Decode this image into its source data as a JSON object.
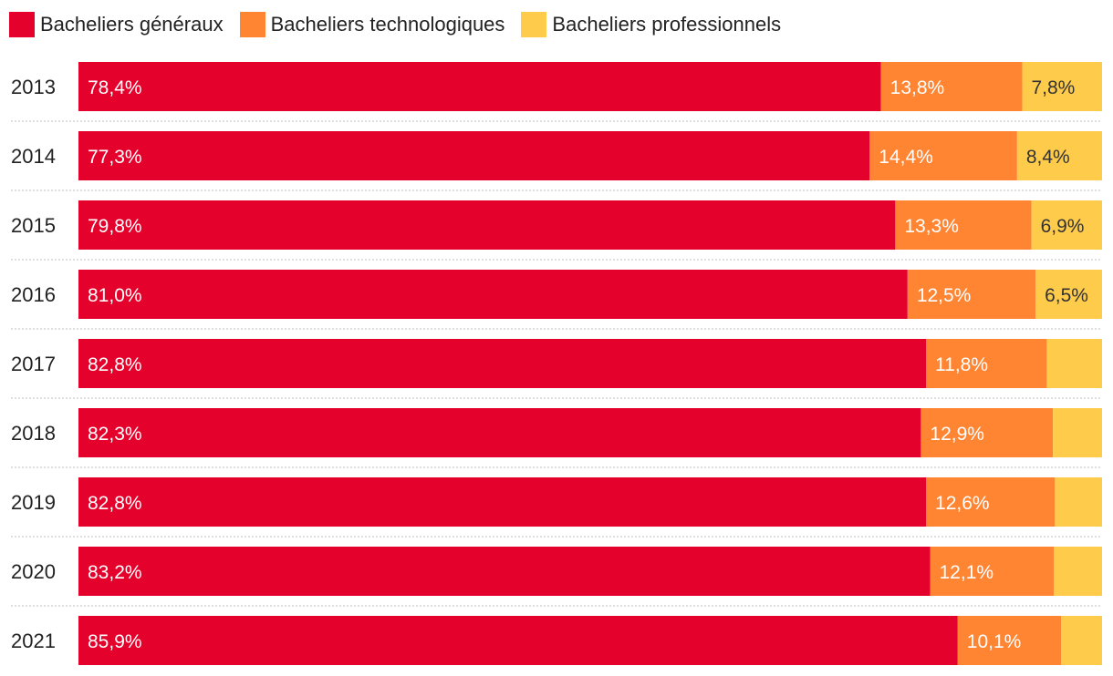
{
  "chart_data": {
    "type": "bar",
    "orientation": "horizontal",
    "stacked": true,
    "categories": [
      "2013",
      "2014",
      "2015",
      "2016",
      "2017",
      "2018",
      "2019",
      "2020",
      "2021"
    ],
    "series": [
      {
        "name": "Bacheliers généraux",
        "color": "#e4022c",
        "values": [
          78.4,
          77.3,
          79.8,
          81.0,
          82.8,
          82.3,
          82.8,
          83.2,
          85.9
        ],
        "labels": [
          "78,4%",
          "77,3%",
          "79,8%",
          "81,0%",
          "82,8%",
          "82,3%",
          "82,8%",
          "83,2%",
          "85,9%"
        ]
      },
      {
        "name": "Bacheliers technologiques",
        "color": "#ff8533",
        "values": [
          13.8,
          14.4,
          13.3,
          12.5,
          11.8,
          12.9,
          12.6,
          12.1,
          10.1
        ],
        "labels": [
          "13,8%",
          "14,4%",
          "13,3%",
          "12,5%",
          "11,8%",
          "12,9%",
          "12,6%",
          "12,1%",
          "10,1%"
        ]
      },
      {
        "name": "Bacheliers professionnels",
        "color": "#fecb4b",
        "values": [
          7.8,
          8.4,
          6.9,
          6.5,
          5.4,
          4.8,
          4.6,
          4.7,
          4.0
        ],
        "labels": [
          "7,8%",
          "8,4%",
          "6,9%",
          "6,5%",
          "",
          "",
          "",
          "",
          ""
        ]
      }
    ],
    "xlim": [
      0,
      100
    ],
    "legend_position": "top-left",
    "grid": false,
    "row_separator": "dotted"
  }
}
